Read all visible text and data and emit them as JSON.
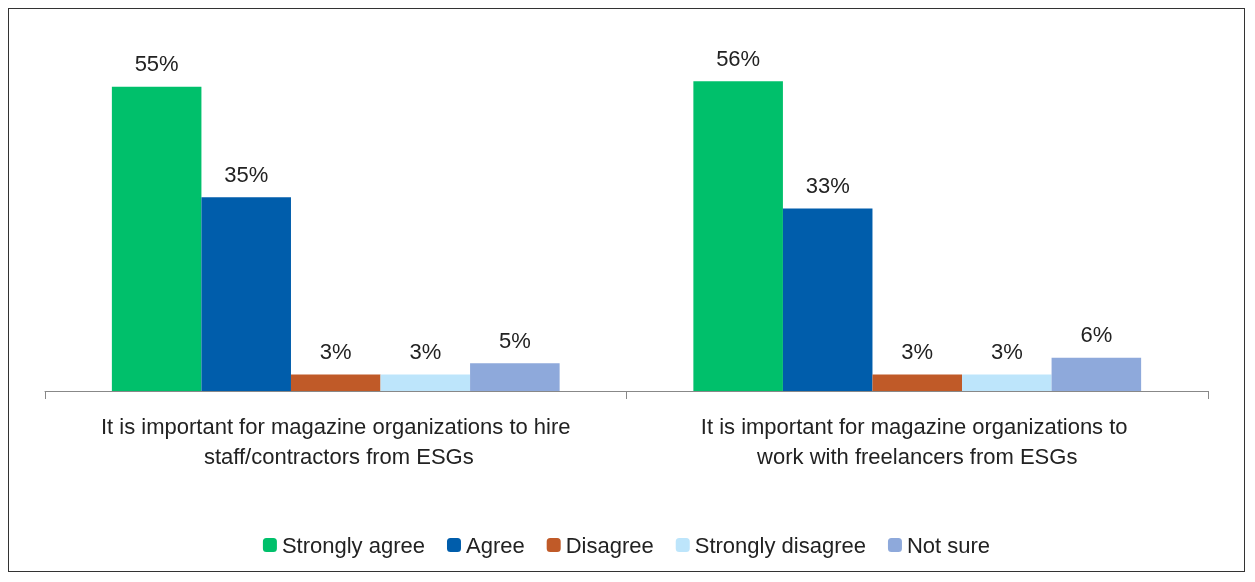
{
  "chart_data": {
    "type": "bar",
    "categories": [
      "It is important for magazine organizations to hire staff/contractors from ESGs",
      "It is important for magazine organizations to work with freelancers from ESGs"
    ],
    "series": [
      {
        "name": "Strongly agree",
        "color": "#00c06b",
        "values": [
          55,
          56
        ],
        "value_labels": [
          "55%",
          "56%"
        ]
      },
      {
        "name": "Agree",
        "color": "#005dab",
        "values": [
          35,
          33
        ],
        "value_labels": [
          "35%",
          "33%"
        ]
      },
      {
        "name": "Disagree",
        "color": "#c05a28",
        "values": [
          3,
          3
        ],
        "value_labels": [
          "3%",
          "3%"
        ]
      },
      {
        "name": "Strongly disagree",
        "color": "#bde5fb",
        "values": [
          3,
          3
        ],
        "value_labels": [
          "3%",
          "3%"
        ]
      },
      {
        "name": "Not sure",
        "color": "#8ea9db",
        "values": [
          5,
          6
        ],
        "value_labels": [
          "5%",
          "6%"
        ]
      }
    ],
    "legend": "bottom",
    "grid": false
  }
}
